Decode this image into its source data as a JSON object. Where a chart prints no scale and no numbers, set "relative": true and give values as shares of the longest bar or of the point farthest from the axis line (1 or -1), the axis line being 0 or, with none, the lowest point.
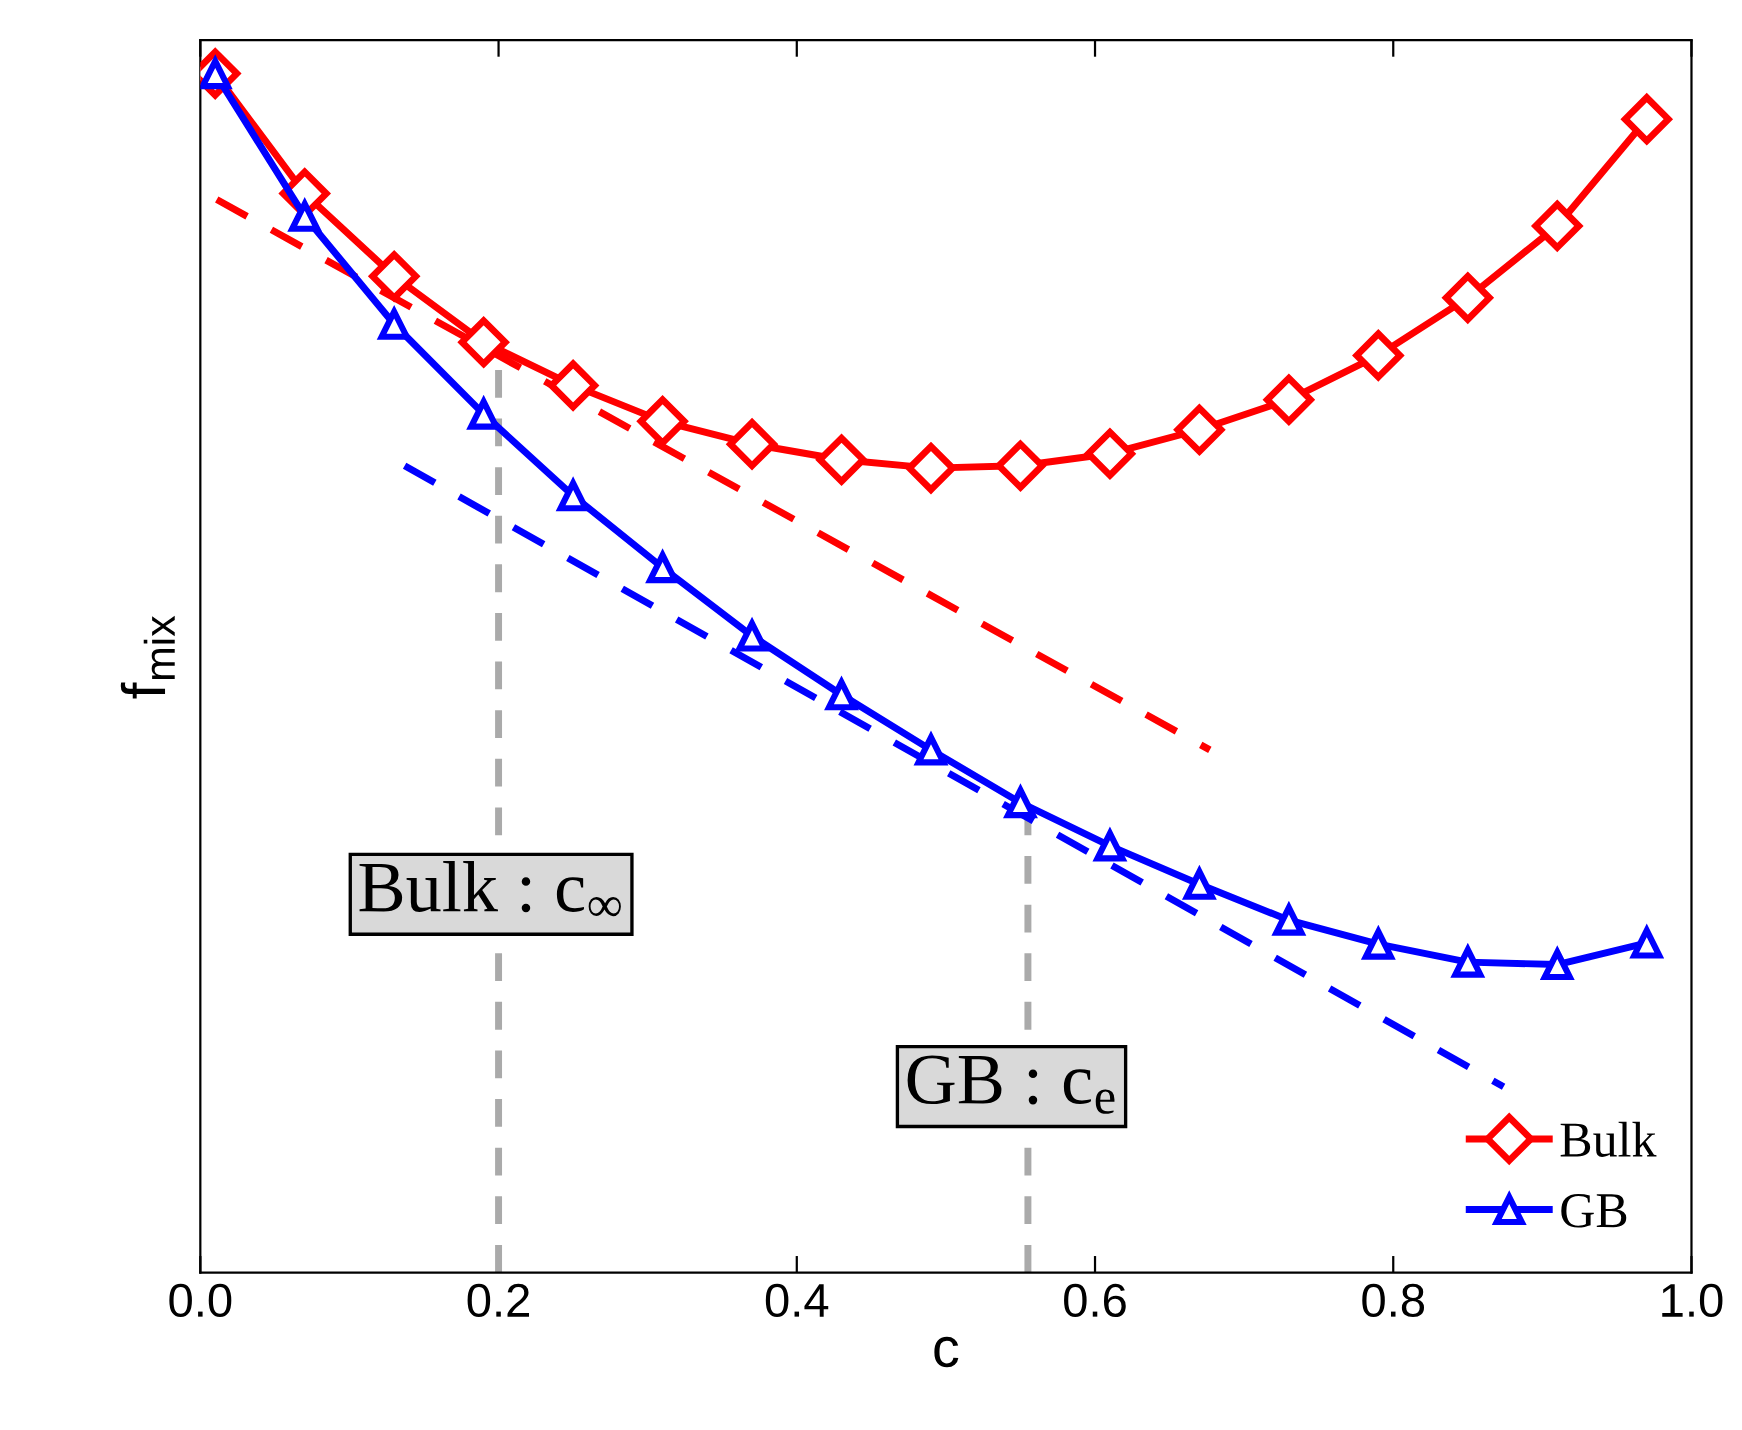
{
  "chart_data": {
    "type": "line",
    "relative": true,
    "xlabel": "c",
    "ylabel": "f$_{mix}$",
    "xlim": [
      0,
      1
    ],
    "xticks": [
      {
        "value": 0,
        "label": "0.0"
      },
      {
        "value": 0.2,
        "label": "0.2"
      },
      {
        "value": 0.4,
        "label": "0.4"
      },
      {
        "value": 0.6,
        "label": "0.6"
      },
      {
        "value": 0.8,
        "label": "0.8"
      },
      {
        "value": 1,
        "label": "1.0"
      }
    ],
    "grid": false,
    "legend": "bottom right",
    "series": [
      {
        "name": "Bulk",
        "color": "#ff0000",
        "marker": "diamond",
        "line_style": "solid",
        "x": [
          0.01,
          0.07,
          0.13,
          0.19,
          0.25,
          0.31,
          0.37,
          0.43,
          0.49,
          0.55,
          0.61,
          0.67,
          0.73,
          0.79,
          0.85,
          0.91,
          0.97
        ],
        "values": [
          1.0,
          0.9,
          0.831,
          0.776,
          0.74,
          0.71,
          0.691,
          0.678,
          0.671,
          0.673,
          0.683,
          0.703,
          0.728,
          0.765,
          0.813,
          0.873,
          0.962
        ]
      },
      {
        "name": "GB",
        "color": "#0000ff",
        "marker": "triangle",
        "line_style": "solid",
        "x": [
          0.01,
          0.07,
          0.13,
          0.19,
          0.25,
          0.31,
          0.37,
          0.43,
          0.49,
          0.55,
          0.61,
          0.67,
          0.73,
          0.79,
          0.85,
          0.91,
          0.97
        ],
        "values": [
          1.0,
          0.881,
          0.791,
          0.716,
          0.648,
          0.588,
          0.531,
          0.482,
          0.436,
          0.392,
          0.356,
          0.324,
          0.294,
          0.274,
          0.259,
          0.257,
          0.275
        ]
      },
      {
        "color": "#ff0000",
        "marker": "none",
        "line_style": "dashed",
        "x": [
          0.011,
          0.677
        ],
        "values": [
          0.895,
          0.436
        ]
      },
      {
        "color": "#0000ff",
        "marker": "none",
        "line_style": "dashed",
        "x": [
          0.137,
          0.874
        ],
        "values": [
          0.673,
          0.155
        ]
      }
    ],
    "ref_lines": [
      {
        "axis": "x",
        "value": 0.2,
        "label": "Bulk : c$_{∞}$",
        "color": "#aaaaaa",
        "line_style": "dashed"
      },
      {
        "axis": "x",
        "value": 0.555,
        "label": "GB : c$_{e}$",
        "color": "#aaaaaa",
        "line_style": "dashed"
      }
    ]
  }
}
